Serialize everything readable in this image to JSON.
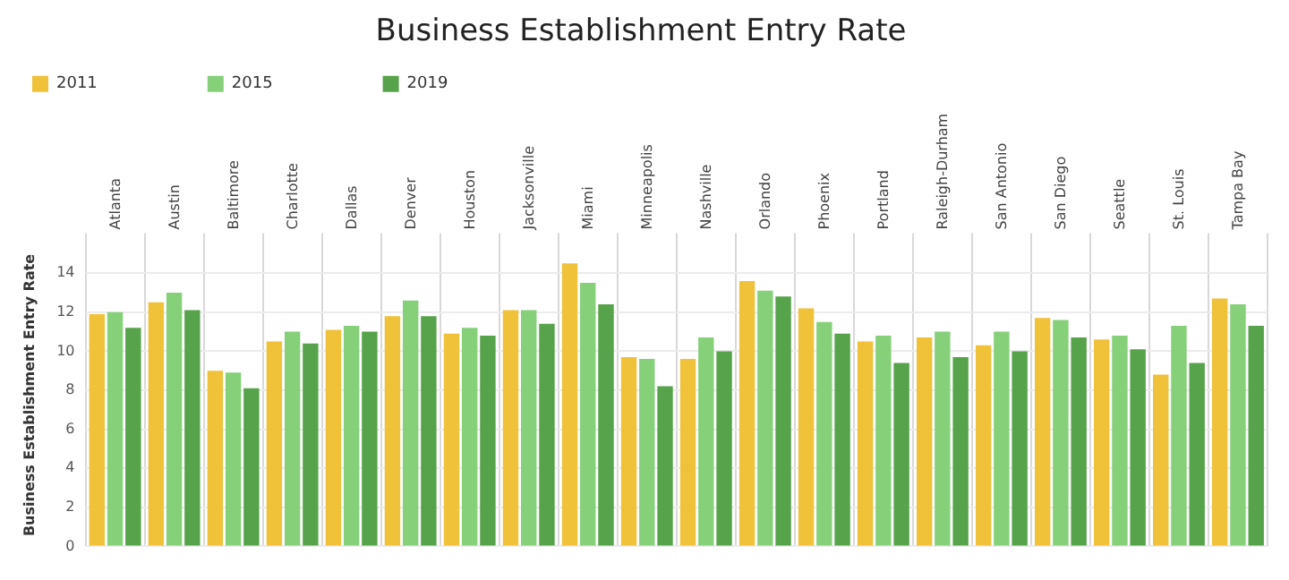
{
  "chart_data": {
    "type": "bar",
    "title": "Business Establishment Entry Rate",
    "ylabel": "Business Establishment Entry Rate",
    "categories": [
      "Atlanta",
      "Austin",
      "Baltimore",
      "Charlotte",
      "Dallas",
      "Denver",
      "Houston",
      "Jacksonville",
      "Miami",
      "Minneapolis",
      "Nashville",
      "Orlando",
      "Phoenix",
      "Portland",
      "Raleigh-Durham",
      "San Antonio",
      "San Diego",
      "Seattle",
      "St. Louis",
      "Tampa Bay"
    ],
    "series": [
      {
        "name": "2011",
        "color": "#efc23a",
        "values": [
          11.9,
          12.5,
          9.0,
          10.5,
          11.1,
          11.8,
          10.9,
          12.1,
          14.5,
          9.7,
          9.6,
          13.6,
          12.2,
          10.5,
          10.7,
          10.3,
          11.7,
          10.6,
          8.8,
          12.7
        ]
      },
      {
        "name": "2015",
        "color": "#86d07a",
        "values": [
          12.0,
          13.0,
          8.9,
          11.0,
          11.3,
          12.6,
          11.2,
          12.1,
          13.5,
          9.6,
          10.7,
          13.1,
          11.5,
          10.8,
          11.0,
          11.0,
          11.6,
          10.8,
          11.3,
          12.4
        ]
      },
      {
        "name": "2019",
        "color": "#57a34b",
        "values": [
          11.2,
          12.1,
          8.1,
          10.4,
          11.0,
          11.8,
          10.8,
          11.4,
          12.4,
          8.2,
          10.0,
          12.8,
          10.9,
          9.4,
          9.7,
          10.0,
          10.7,
          10.1,
          9.4,
          11.3
        ]
      }
    ],
    "ylim": [
      0,
      15.5
    ],
    "yticks": [
      0,
      2,
      4,
      6,
      8,
      10,
      12,
      14
    ],
    "grid": true,
    "legend": "top left"
  }
}
